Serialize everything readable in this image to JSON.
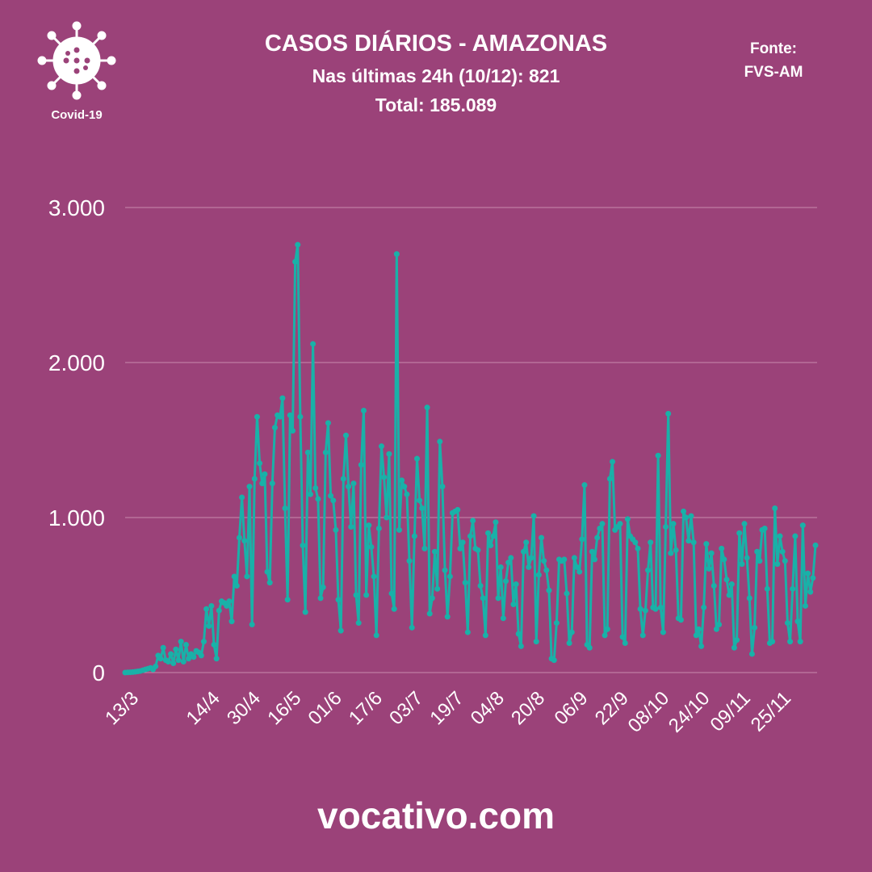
{
  "header": {
    "title": "CASOS DIÁRIOS - AMAZONAS",
    "subtitle": "Nas últimas 24h (10/12): 821",
    "total": "Total: 185.089",
    "source_label": "Fonte:",
    "source": "FVS-AM",
    "logo_label": "Covid-19"
  },
  "footer": "vocativo.com",
  "chart_data": {
    "type": "line",
    "color": "#19b1a8",
    "grid": true,
    "ylim": [
      0,
      3000
    ],
    "yticks": [
      0,
      {
        "value": 1000,
        "label": "1.000"
      },
      {
        "value": 2000,
        "label": "2.000"
      },
      {
        "value": 3000,
        "label": "3.000"
      }
    ],
    "categories": [
      "13/3",
      null,
      null,
      null,
      null,
      null,
      null,
      null,
      null,
      null,
      null,
      null,
      null,
      null,
      null,
      null,
      null,
      null,
      null,
      null,
      null,
      null,
      null,
      null,
      null,
      null,
      null,
      null,
      null,
      null,
      null,
      null,
      "14/4",
      null,
      null,
      null,
      null,
      null,
      null,
      null,
      null,
      null,
      null,
      null,
      null,
      null,
      null,
      null,
      "30/4",
      null,
      null,
      null,
      null,
      null,
      null,
      null,
      null,
      null,
      null,
      null,
      null,
      null,
      null,
      null,
      "16/5",
      null,
      null,
      null,
      null,
      null,
      null,
      null,
      null,
      null,
      null,
      null,
      null,
      null,
      null,
      null,
      "01/6",
      null,
      null,
      null,
      null,
      null,
      null,
      null,
      null,
      null,
      null,
      null,
      null,
      null,
      null,
      null,
      "17/6",
      null,
      null,
      null,
      null,
      null,
      null,
      null,
      null,
      null,
      null,
      null,
      null,
      null,
      null,
      null,
      "03/7",
      null,
      null,
      null,
      null,
      null,
      null,
      null,
      null,
      null,
      null,
      null,
      null,
      null,
      null,
      null,
      "19/7",
      null,
      null,
      null,
      null,
      null,
      null,
      null,
      null,
      null,
      null,
      null,
      null,
      null,
      null,
      null,
      "04/8",
      null,
      null,
      null,
      null,
      null,
      null,
      null,
      null,
      null,
      null,
      null,
      null,
      null,
      null,
      null,
      "20/8",
      null,
      null,
      null,
      null,
      null,
      null,
      null,
      null,
      null,
      null,
      null,
      null,
      null,
      null,
      null,
      null,
      "06/9",
      null,
      null,
      null,
      null,
      null,
      null,
      null,
      null,
      null,
      null,
      null,
      null,
      null,
      null,
      null,
      "22/9",
      null,
      null,
      null,
      null,
      null,
      null,
      null,
      null,
      null,
      null,
      null,
      null,
      null,
      null,
      null,
      "08/10",
      null,
      null,
      null,
      null,
      null,
      null,
      null,
      null,
      null,
      null,
      null,
      null,
      null,
      null,
      null,
      "24/10",
      null,
      null,
      null,
      null,
      null,
      null,
      null,
      null,
      null,
      null,
      null,
      null,
      null,
      null,
      null,
      "09/11",
      null,
      null,
      null,
      null,
      null,
      null,
      null,
      null,
      null,
      null,
      null,
      null,
      null,
      null,
      null,
      "25/11",
      null,
      null,
      null,
      null,
      null,
      null,
      null,
      null,
      null,
      null,
      null,
      null,
      null,
      null,
      null
    ],
    "values": [
      0,
      1,
      2,
      3,
      5,
      8,
      10,
      15,
      20,
      25,
      30,
      20,
      40,
      110,
      90,
      160,
      80,
      70,
      120,
      60,
      150,
      80,
      200,
      70,
      180,
      90,
      120,
      100,
      140,
      130,
      110,
      200,
      410,
      300,
      430,
      180,
      90,
      400,
      460,
      450,
      430,
      460,
      330,
      620,
      560,
      870,
      1130,
      850,
      620,
      1200,
      310,
      1250,
      1650,
      1350,
      1220,
      1280,
      650,
      580,
      1220,
      1580,
      1660,
      1650,
      1770,
      1060,
      470,
      1660,
      1560,
      2650,
      2760,
      1650,
      820,
      390,
      1420,
      1150,
      2120,
      1190,
      1120,
      480,
      550,
      1420,
      1610,
      1140,
      1110,
      920,
      470,
      270,
      1250,
      1530,
      1200,
      940,
      1220,
      500,
      320,
      1340,
      1690,
      500,
      950,
      810,
      620,
      240,
      930,
      1460,
      1260,
      1000,
      1410,
      510,
      410,
      2700,
      920,
      1240,
      1200,
      1150,
      720,
      290,
      880,
      1380,
      1110,
      1060,
      800,
      1710,
      380,
      480,
      780,
      540,
      1490,
      1200,
      660,
      360,
      620,
      1030,
      1040,
      1050,
      800,
      840,
      580,
      260,
      880,
      980,
      800,
      790,
      560,
      480,
      240,
      900,
      820,
      880,
      970,
      480,
      680,
      350,
      590,
      710,
      740,
      440,
      570,
      250,
      170,
      780,
      840,
      680,
      740,
      1010,
      200,
      630,
      870,
      720,
      660,
      530,
      90,
      80,
      320,
      730,
      720,
      730,
      510,
      190,
      260,
      740,
      680,
      650,
      860,
      1210,
      180,
      160,
      780,
      730,
      870,
      930,
      960,
      240,
      280,
      1250,
      1360,
      920,
      940,
      960,
      230,
      190,
      990,
      880,
      860,
      840,
      800,
      410,
      240,
      400,
      660,
      840,
      420,
      410,
      1400,
      420,
      260,
      940,
      1670,
      770,
      960,
      790,
      350,
      340,
      1040,
      1000,
      850,
      1010,
      840,
      240,
      280,
      170,
      420,
      830,
      670,
      770,
      560,
      280,
      310,
      800,
      730,
      600,
      500,
      570,
      160,
      210,
      900,
      700,
      960,
      740,
      480,
      120,
      290,
      780,
      720,
      920,
      930,
      540,
      190,
      200,
      1060,
      700,
      880,
      780,
      720,
      320,
      200,
      540,
      880,
      330,
      200,
      950,
      430,
      640,
      520,
      610,
      821
    ]
  }
}
